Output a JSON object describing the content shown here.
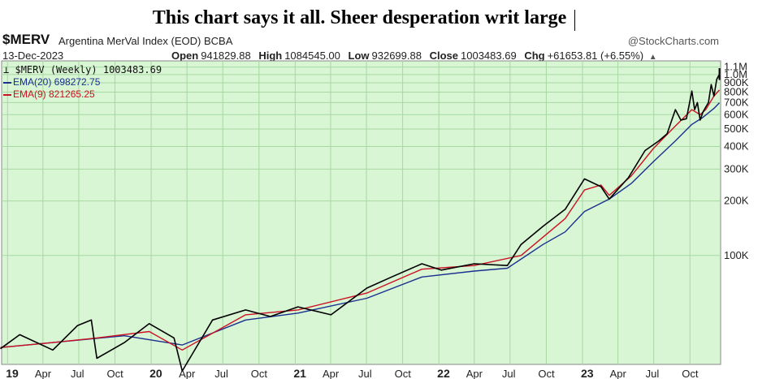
{
  "headline": "This chart says it all. Sheer desperation writ large",
  "header": {
    "symbol": "$MERV",
    "description": "Argentina MerVal Index (EOD)",
    "exchange": "BCBA",
    "credit": "@StockCharts.com",
    "date": "13-Dec-2023",
    "open_label": "Open",
    "open": "941829.88",
    "high_label": "High",
    "high": "1084545.00",
    "low_label": "Low",
    "low": "932699.88",
    "close_label": "Close",
    "close": "1003483.69",
    "chg_label": "Chg",
    "chg": "+61653.81 (+6.55%)",
    "up_arrow": "▲"
  },
  "legend": {
    "price": "$MERV (Weekly) 1003483.69",
    "ema20": "EMA(20) 698272.75",
    "ema9": "EMA(9) 821265.25"
  },
  "colors": {
    "background": "#d8f5d4",
    "grid": "#a8d8a2",
    "price": "#000000",
    "ema20": "#1a2f8f",
    "ema9": "#cc1122"
  },
  "chart_data": {
    "type": "line",
    "y_scale": "log",
    "y_ticks": [
      {
        "v": 1100000,
        "label": "1.1M"
      },
      {
        "v": 1000000,
        "label": "1.0M"
      },
      {
        "v": 900000,
        "label": "900K"
      },
      {
        "v": 800000,
        "label": "800K"
      },
      {
        "v": 700000,
        "label": "700K"
      },
      {
        "v": 600000,
        "label": "600K"
      },
      {
        "v": 500000,
        "label": "500K"
      },
      {
        "v": 400000,
        "label": "400K"
      },
      {
        "v": 300000,
        "label": "300K"
      },
      {
        "v": 200000,
        "label": "200K"
      },
      {
        "v": 100000,
        "label": "100K"
      }
    ],
    "x_ticks": [
      {
        "d": "2019-01-01",
        "label": "19",
        "year": true
      },
      {
        "d": "2019-04-01",
        "label": "Apr"
      },
      {
        "d": "2019-07-01",
        "label": "Jul"
      },
      {
        "d": "2019-10-01",
        "label": "Oct"
      },
      {
        "d": "2020-01-01",
        "label": "20",
        "year": true
      },
      {
        "d": "2020-04-01",
        "label": "Apr"
      },
      {
        "d": "2020-07-01",
        "label": "Jul"
      },
      {
        "d": "2020-10-01",
        "label": "Oct"
      },
      {
        "d": "2021-01-01",
        "label": "21",
        "year": true
      },
      {
        "d": "2021-04-01",
        "label": "Apr"
      },
      {
        "d": "2021-07-01",
        "label": "Jul"
      },
      {
        "d": "2021-10-01",
        "label": "Oct"
      },
      {
        "d": "2022-01-01",
        "label": "22",
        "year": true
      },
      {
        "d": "2022-04-01",
        "label": "Apr"
      },
      {
        "d": "2022-07-01",
        "label": "Jul"
      },
      {
        "d": "2022-10-01",
        "label": "Oct"
      },
      {
        "d": "2023-01-01",
        "label": "23",
        "year": true
      },
      {
        "d": "2023-04-01",
        "label": "Apr"
      },
      {
        "d": "2023-07-01",
        "label": "Jul"
      },
      {
        "d": "2023-10-01",
        "label": "Oct"
      }
    ],
    "x_range": [
      "2018-12-17",
      "2023-12-18"
    ],
    "grid": true,
    "series": [
      {
        "name": "$MERV (Weekly)",
        "points": [
          [
            "2018-12-14",
            30500
          ],
          [
            "2019-02-01",
            36500
          ],
          [
            "2019-04-26",
            30000
          ],
          [
            "2019-06-28",
            41000
          ],
          [
            "2019-08-02",
            44000
          ],
          [
            "2019-08-16",
            27000
          ],
          [
            "2019-10-25",
            33000
          ],
          [
            "2019-12-27",
            42000
          ],
          [
            "2020-02-28",
            35000
          ],
          [
            "2020-03-20",
            23000
          ],
          [
            "2020-06-05",
            44000
          ],
          [
            "2020-08-28",
            50000
          ],
          [
            "2020-10-30",
            46000
          ],
          [
            "2021-01-08",
            52000
          ],
          [
            "2021-04-02",
            47000
          ],
          [
            "2021-07-02",
            66000
          ],
          [
            "2021-09-03",
            76000
          ],
          [
            "2021-11-19",
            90000
          ],
          [
            "2022-01-07",
            83000
          ],
          [
            "2022-04-01",
            90000
          ],
          [
            "2022-06-24",
            88000
          ],
          [
            "2022-07-29",
            115000
          ],
          [
            "2022-09-23",
            145000
          ],
          [
            "2022-11-18",
            180000
          ],
          [
            "2023-01-06",
            265000
          ],
          [
            "2023-02-17",
            240000
          ],
          [
            "2023-03-10",
            205000
          ],
          [
            "2023-04-28",
            270000
          ],
          [
            "2023-06-09",
            380000
          ],
          [
            "2023-07-14",
            430000
          ],
          [
            "2023-08-04",
            470000
          ],
          [
            "2023-08-25",
            640000
          ],
          [
            "2023-09-08",
            560000
          ],
          [
            "2023-09-22",
            570000
          ],
          [
            "2023-10-06",
            810000
          ],
          [
            "2023-10-13",
            640000
          ],
          [
            "2023-10-20",
            700000
          ],
          [
            "2023-10-27",
            560000
          ],
          [
            "2023-11-03",
            620000
          ],
          [
            "2023-11-10",
            660000
          ],
          [
            "2023-11-17",
            700000
          ],
          [
            "2023-11-24",
            880000
          ],
          [
            "2023-12-01",
            760000
          ],
          [
            "2023-12-08",
            940000
          ],
          [
            "2023-12-15",
            1003483.69
          ]
        ]
      },
      {
        "name": "EMA(20)",
        "points": [
          [
            "2018-12-14",
            31000
          ],
          [
            "2019-06-28",
            34000
          ],
          [
            "2019-10-25",
            36000
          ],
          [
            "2020-03-20",
            32000
          ],
          [
            "2020-08-28",
            44000
          ],
          [
            "2021-01-08",
            48000
          ],
          [
            "2021-07-02",
            58000
          ],
          [
            "2021-11-19",
            76000
          ],
          [
            "2022-04-01",
            82000
          ],
          [
            "2022-06-24",
            85000
          ],
          [
            "2022-09-23",
            115000
          ],
          [
            "2022-11-18",
            135000
          ],
          [
            "2023-01-06",
            175000
          ],
          [
            "2023-03-10",
            205000
          ],
          [
            "2023-05-05",
            250000
          ],
          [
            "2023-06-30",
            330000
          ],
          [
            "2023-08-25",
            430000
          ],
          [
            "2023-10-06",
            530000
          ],
          [
            "2023-11-03",
            580000
          ],
          [
            "2023-12-01",
            650000
          ],
          [
            "2023-12-15",
            698272.75
          ]
        ]
      },
      {
        "name": "EMA(9)",
        "points": [
          [
            "2018-12-14",
            31000
          ],
          [
            "2019-04-26",
            33000
          ],
          [
            "2019-08-16",
            35000
          ],
          [
            "2019-12-27",
            38000
          ],
          [
            "2020-03-20",
            30000
          ],
          [
            "2020-08-28",
            47000
          ],
          [
            "2021-01-08",
            50000
          ],
          [
            "2021-07-02",
            62000
          ],
          [
            "2021-11-19",
            84000
          ],
          [
            "2022-04-01",
            88000
          ],
          [
            "2022-07-29",
            100000
          ],
          [
            "2022-11-18",
            160000
          ],
          [
            "2023-01-06",
            230000
          ],
          [
            "2023-02-17",
            245000
          ],
          [
            "2023-03-10",
            215000
          ],
          [
            "2023-05-05",
            275000
          ],
          [
            "2023-06-30",
            390000
          ],
          [
            "2023-08-25",
            520000
          ],
          [
            "2023-10-06",
            640000
          ],
          [
            "2023-10-27",
            600000
          ],
          [
            "2023-11-10",
            640000
          ],
          [
            "2023-12-01",
            760000
          ],
          [
            "2023-12-15",
            821265.25
          ]
        ]
      }
    ]
  }
}
